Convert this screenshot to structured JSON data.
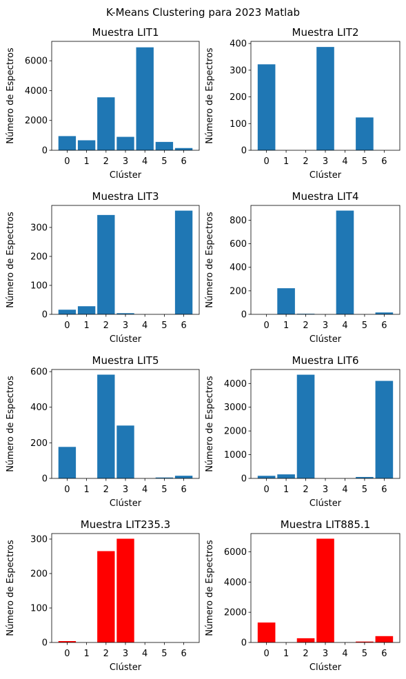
{
  "figure_title": "K-Means Clustering para 2023 Matlab",
  "chart_data": [
    {
      "type": "bar",
      "title": "Muestra LIT1",
      "xlabel": "Clúster",
      "ylabel": "Número de Espectros",
      "categories": [
        "0",
        "1",
        "2",
        "3",
        "4",
        "5",
        "6"
      ],
      "values": [
        950,
        670,
        3550,
        900,
        6900,
        560,
        150
      ],
      "ylim": [
        0,
        7300
      ],
      "yticks": [
        0,
        2000,
        4000,
        6000
      ],
      "color": "#1f77b4"
    },
    {
      "type": "bar",
      "title": "Muestra LIT2",
      "xlabel": "Clúster",
      "ylabel": "Número de Espectros",
      "categories": [
        "0",
        "1",
        "2",
        "3",
        "4",
        "5",
        "6"
      ],
      "values": [
        322,
        0,
        0,
        387,
        0,
        123,
        0
      ],
      "ylim": [
        0,
        408
      ],
      "yticks": [
        0,
        100,
        200,
        300,
        400
      ],
      "color": "#1f77b4"
    },
    {
      "type": "bar",
      "title": "Muestra LIT3",
      "xlabel": "Clúster",
      "ylabel": "Número de Espectros",
      "categories": [
        "0",
        "1",
        "2",
        "3",
        "4",
        "5",
        "6"
      ],
      "values": [
        16,
        28,
        343,
        4,
        0,
        0,
        358
      ],
      "ylim": [
        0,
        376
      ],
      "yticks": [
        0,
        100,
        200,
        300
      ],
      "color": "#1f77b4"
    },
    {
      "type": "bar",
      "title": "Muestra LIT4",
      "xlabel": "Clúster",
      "ylabel": "Número de Espectros",
      "categories": [
        "0",
        "1",
        "2",
        "3",
        "4",
        "5",
        "6"
      ],
      "values": [
        0,
        222,
        5,
        0,
        882,
        0,
        16
      ],
      "ylim": [
        0,
        926
      ],
      "yticks": [
        0,
        200,
        400,
        600,
        800
      ],
      "color": "#1f77b4"
    },
    {
      "type": "bar",
      "title": "Muestra LIT5",
      "xlabel": "Clúster",
      "ylabel": "Número de Espectros",
      "categories": [
        "0",
        "1",
        "2",
        "3",
        "4",
        "5",
        "6"
      ],
      "values": [
        177,
        0,
        583,
        297,
        0,
        5,
        15
      ],
      "ylim": [
        0,
        612
      ],
      "yticks": [
        0,
        200,
        400,
        600
      ],
      "color": "#1f77b4"
    },
    {
      "type": "bar",
      "title": "Muestra LIT6",
      "xlabel": "Clúster",
      "ylabel": "Número de Espectros",
      "categories": [
        "0",
        "1",
        "2",
        "3",
        "4",
        "5",
        "6"
      ],
      "values": [
        110,
        170,
        4370,
        0,
        0,
        60,
        4110
      ],
      "ylim": [
        0,
        4590
      ],
      "yticks": [
        0,
        1000,
        2000,
        3000,
        4000
      ],
      "color": "#1f77b4"
    },
    {
      "type": "bar",
      "title": "Muestra LIT235.3",
      "xlabel": "Clúster",
      "ylabel": "Número de Espectros",
      "categories": [
        "0",
        "1",
        "2",
        "3",
        "4",
        "5",
        "6"
      ],
      "values": [
        4,
        0,
        265,
        301,
        0,
        0,
        0
      ],
      "ylim": [
        0,
        316
      ],
      "yticks": [
        0,
        100,
        200,
        300
      ],
      "color": "#ff0000"
    },
    {
      "type": "bar",
      "title": "Muestra LIT885.1",
      "xlabel": "Clúster",
      "ylabel": "Número de Espectros",
      "categories": [
        "0",
        "1",
        "2",
        "3",
        "4",
        "5",
        "6"
      ],
      "values": [
        1320,
        0,
        280,
        6870,
        0,
        60,
        420
      ],
      "ylim": [
        0,
        7210
      ],
      "yticks": [
        0,
        2000,
        4000,
        6000
      ],
      "color": "#ff0000"
    }
  ]
}
